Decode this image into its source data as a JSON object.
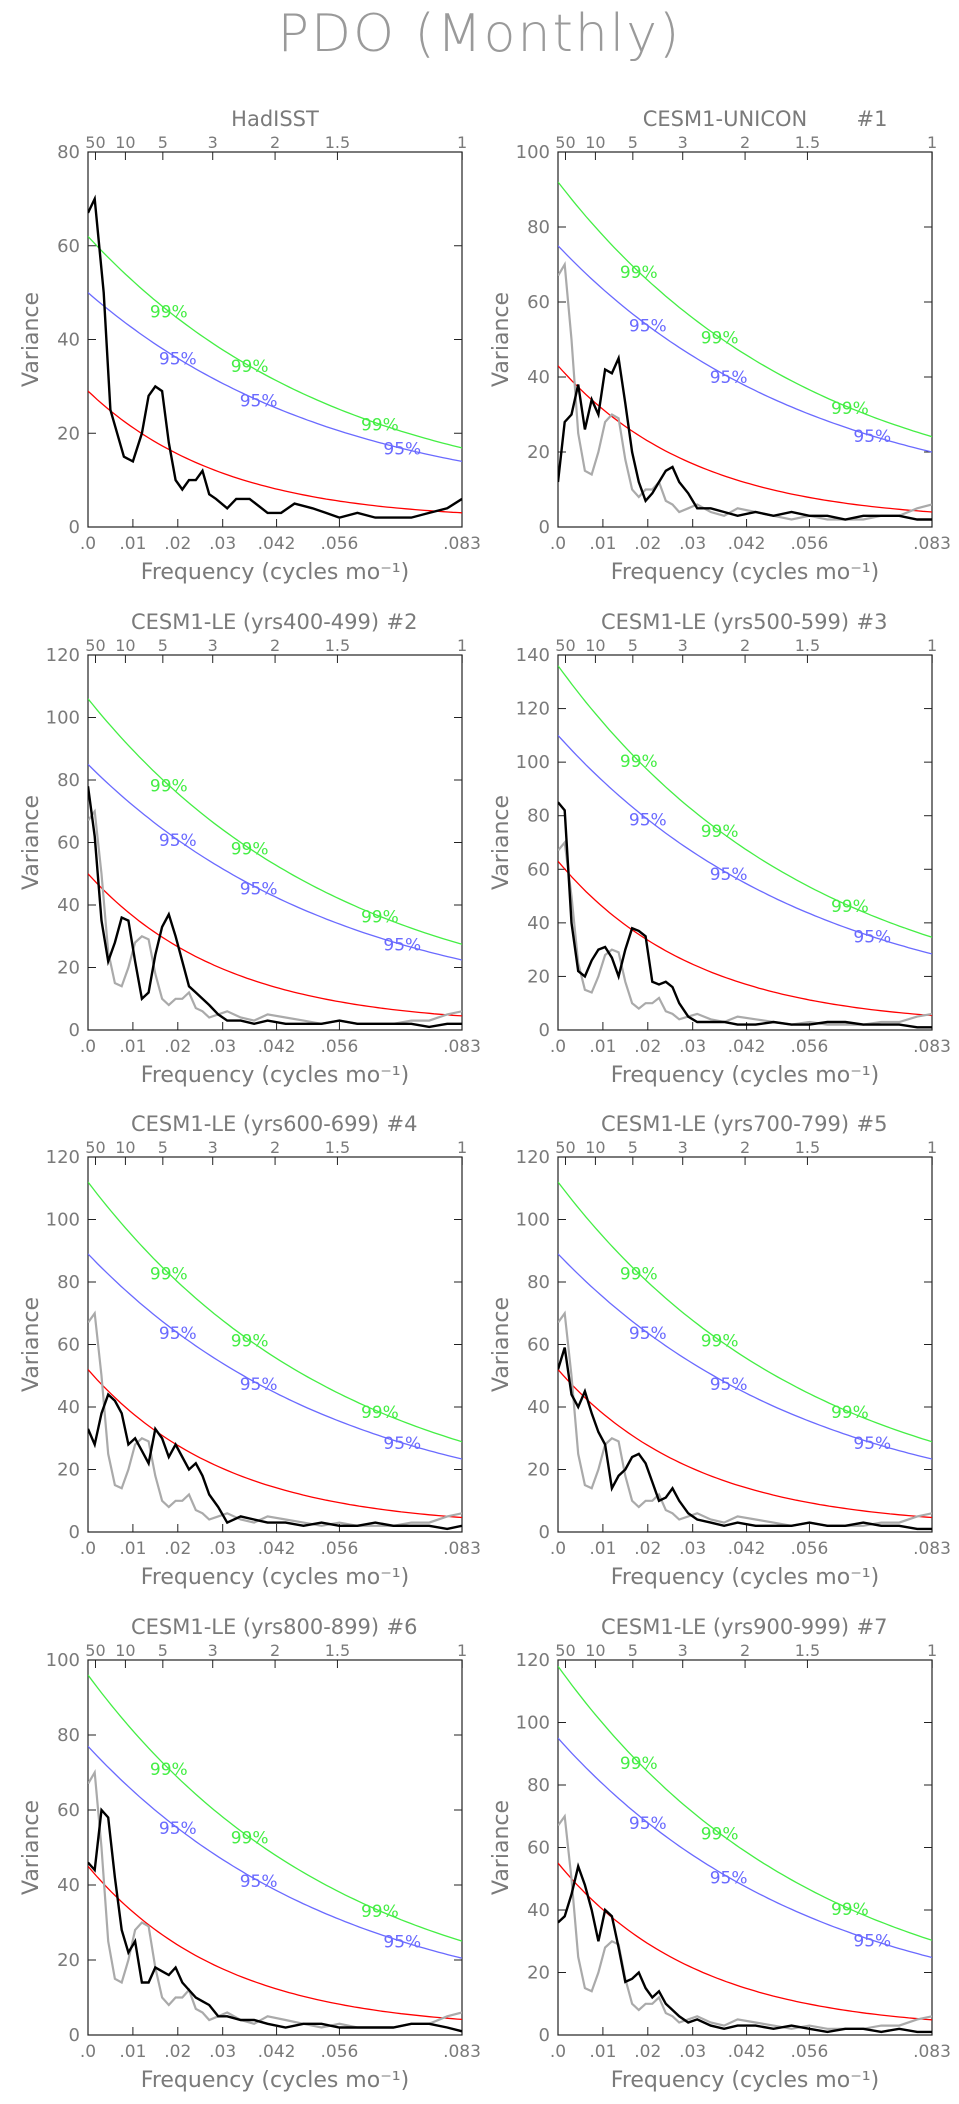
{
  "page": {
    "title": "PDO (Monthly)"
  },
  "colors": {
    "observed_or_model": "#000000",
    "reference_hadisst": "#aaaaaa",
    "red_noise": "#ff0000",
    "sig95": "#6a6aff",
    "sig99": "#44ee44",
    "axes": "#7a7a7a"
  },
  "chart_data": [
    {
      "type": "line",
      "title": "HadISST",
      "tag": "",
      "xlabel": "Frequency (cycles mo⁻¹)",
      "ylabel": "Variance",
      "xlim": [
        0,
        0.0833
      ],
      "ylim": [
        0,
        80
      ],
      "yticks": [
        0,
        20,
        40,
        60,
        80
      ],
      "xticks": [
        ".0",
        ".01",
        ".02",
        ".03",
        ".042",
        ".056",
        ".083"
      ],
      "top_axis_label": "",
      "top_ticks": [
        "50",
        "10",
        "5",
        "3",
        "2",
        "1.5",
        "1"
      ],
      "red_noise_start": 29,
      "sig95_start": 50,
      "sig99_start": 62,
      "show_reference": false,
      "sig_labels": [
        "99%",
        "95%",
        "99%",
        "95%",
        "99%",
        "95%"
      ],
      "series": [
        {
          "x": [
            0.0,
            0.0015,
            0.0035,
            0.005,
            0.008,
            0.01,
            0.012,
            0.0135,
            0.015,
            0.0165,
            0.018,
            0.0195,
            0.021,
            0.0225,
            0.024,
            0.0255,
            0.027,
            0.0285,
            0.031,
            0.033,
            0.036,
            0.04,
            0.043,
            0.046,
            0.05,
            0.053,
            0.056,
            0.06,
            0.064,
            0.068,
            0.072,
            0.076,
            0.08,
            0.0833
          ],
          "y": [
            67,
            70,
            50,
            25,
            15,
            14,
            20,
            28,
            30,
            29,
            18,
            10,
            8,
            10,
            10,
            12,
            7,
            6,
            4,
            6,
            6,
            3,
            3,
            5,
            4,
            3,
            2,
            3,
            2,
            2,
            2,
            3,
            4,
            6
          ]
        }
      ]
    },
    {
      "type": "line",
      "title": "CESM1-UNICON",
      "tag": "#1",
      "xlabel": "Frequency (cycles mo⁻¹)",
      "ylabel": "Variance",
      "xlim": [
        0,
        0.0833
      ],
      "ylim": [
        0,
        100
      ],
      "yticks": [
        0,
        20,
        40,
        60,
        80,
        100
      ],
      "xticks": [
        ".0",
        ".01",
        ".02",
        ".03",
        ".042",
        ".056",
        ".083"
      ],
      "top_axis_label": "",
      "top_ticks": [
        "50",
        "10",
        "5",
        "3",
        "2",
        "1.5",
        "1"
      ],
      "red_noise_start": 43,
      "sig95_start": 75,
      "sig99_start": 92,
      "show_reference": true,
      "sig_labels": [
        "99%",
        "95%",
        "99%",
        "95%",
        "99%",
        "95%"
      ],
      "series": [
        {
          "x": [
            0.0,
            0.0015,
            0.003,
            0.0045,
            0.006,
            0.0075,
            0.009,
            0.0105,
            0.012,
            0.0135,
            0.015,
            0.0165,
            0.018,
            0.0195,
            0.021,
            0.0225,
            0.024,
            0.0255,
            0.027,
            0.029,
            0.031,
            0.034,
            0.037,
            0.04,
            0.044,
            0.048,
            0.052,
            0.056,
            0.06,
            0.064,
            0.068,
            0.072,
            0.076,
            0.08,
            0.0833
          ],
          "y": [
            12,
            28,
            30,
            38,
            26,
            34,
            30,
            42,
            41,
            45,
            33,
            20,
            12,
            7,
            9,
            12,
            15,
            16,
            12,
            9,
            5,
            5,
            4,
            3,
            4,
            3,
            4,
            3,
            3,
            2,
            3,
            3,
            3,
            2,
            2
          ]
        }
      ]
    },
    {
      "type": "line",
      "title": "CESM1-LE (yrs400-499)",
      "tag": "#2",
      "xlabel": "Frequency (cycles mo⁻¹)",
      "ylabel": "Variance",
      "xlim": [
        0,
        0.0833
      ],
      "ylim": [
        0,
        120
      ],
      "yticks": [
        0,
        20,
        40,
        60,
        80,
        100,
        120
      ],
      "xticks": [
        ".0",
        ".01",
        ".02",
        ".03",
        ".042",
        ".056",
        ".083"
      ],
      "top_axis_label": "",
      "top_ticks": [
        "50",
        "10",
        "5",
        "3",
        "2",
        "1.5",
        "1"
      ],
      "red_noise_start": 50,
      "sig95_start": 85,
      "sig99_start": 106,
      "show_reference": true,
      "sig_labels": [
        "99%",
        "95%",
        "99%",
        "95%",
        "99%",
        "95%"
      ],
      "series": [
        {
          "x": [
            0.0,
            0.0015,
            0.003,
            0.0045,
            0.006,
            0.0075,
            0.009,
            0.0105,
            0.012,
            0.0135,
            0.015,
            0.0165,
            0.018,
            0.0195,
            0.021,
            0.0225,
            0.024,
            0.0255,
            0.027,
            0.029,
            0.031,
            0.034,
            0.037,
            0.04,
            0.044,
            0.048,
            0.052,
            0.056,
            0.06,
            0.064,
            0.068,
            0.072,
            0.076,
            0.08,
            0.0833
          ],
          "y": [
            78,
            62,
            35,
            22,
            28,
            36,
            35,
            22,
            10,
            12,
            24,
            33,
            37,
            30,
            22,
            14,
            12,
            10,
            8,
            5,
            3,
            3,
            2,
            3,
            2,
            2,
            2,
            3,
            2,
            2,
            2,
            2,
            1,
            2,
            2
          ]
        }
      ]
    },
    {
      "type": "line",
      "title": "CESM1-LE (yrs500-599)",
      "tag": "#3",
      "xlabel": "Frequency (cycles mo⁻¹)",
      "ylabel": "Variance",
      "xlim": [
        0,
        0.0833
      ],
      "ylim": [
        0,
        140
      ],
      "yticks": [
        0,
        20,
        40,
        60,
        80,
        100,
        120,
        140
      ],
      "xticks": [
        ".0",
        ".01",
        ".02",
        ".03",
        ".042",
        ".056",
        ".083"
      ],
      "top_axis_label": "",
      "top_ticks": [
        "50",
        "10",
        "5",
        "3",
        "2",
        "1.5",
        "1"
      ],
      "red_noise_start": 63,
      "sig95_start": 110,
      "sig99_start": 136,
      "show_reference": true,
      "sig_labels": [
        "99%",
        "95%",
        "99%",
        "95%",
        "99%",
        "95%"
      ],
      "series": [
        {
          "x": [
            0.0,
            0.0015,
            0.003,
            0.0045,
            0.006,
            0.0075,
            0.009,
            0.0105,
            0.012,
            0.0135,
            0.015,
            0.0165,
            0.018,
            0.0195,
            0.021,
            0.0225,
            0.024,
            0.0255,
            0.027,
            0.029,
            0.031,
            0.034,
            0.037,
            0.04,
            0.044,
            0.048,
            0.052,
            0.056,
            0.06,
            0.064,
            0.068,
            0.072,
            0.076,
            0.08,
            0.0833
          ],
          "y": [
            85,
            82,
            40,
            22,
            20,
            26,
            30,
            31,
            27,
            20,
            30,
            38,
            37,
            35,
            18,
            17,
            18,
            16,
            10,
            5,
            3,
            3,
            3,
            2,
            2,
            3,
            2,
            2,
            3,
            3,
            2,
            2,
            2,
            1,
            1
          ]
        }
      ]
    },
    {
      "type": "line",
      "title": "CESM1-LE (yrs600-699)",
      "tag": "#4",
      "xlabel": "Frequency (cycles mo⁻¹)",
      "ylabel": "Variance",
      "xlim": [
        0,
        0.0833
      ],
      "ylim": [
        0,
        120
      ],
      "yticks": [
        0,
        20,
        40,
        60,
        80,
        100,
        120
      ],
      "xticks": [
        ".0",
        ".01",
        ".02",
        ".03",
        ".042",
        ".056",
        ".083"
      ],
      "top_axis_label": "",
      "top_ticks": [
        "50",
        "10",
        "5",
        "3",
        "2",
        "1.5",
        "1"
      ],
      "red_noise_start": 52,
      "sig95_start": 89,
      "sig99_start": 112,
      "show_reference": true,
      "sig_labels": [
        "99%",
        "95%",
        "99%",
        "95%",
        "99%",
        "95%"
      ],
      "series": [
        {
          "x": [
            0.0,
            0.0015,
            0.003,
            0.0045,
            0.006,
            0.0075,
            0.009,
            0.0105,
            0.012,
            0.0135,
            0.015,
            0.0165,
            0.018,
            0.0195,
            0.021,
            0.0225,
            0.024,
            0.0255,
            0.027,
            0.029,
            0.031,
            0.034,
            0.037,
            0.04,
            0.044,
            0.048,
            0.052,
            0.056,
            0.06,
            0.064,
            0.068,
            0.072,
            0.076,
            0.08,
            0.0833
          ],
          "y": [
            33,
            28,
            38,
            44,
            42,
            38,
            28,
            30,
            26,
            22,
            33,
            30,
            24,
            28,
            24,
            20,
            22,
            18,
            12,
            8,
            3,
            5,
            4,
            3,
            3,
            2,
            3,
            2,
            2,
            3,
            2,
            2,
            2,
            1,
            2
          ]
        }
      ]
    },
    {
      "type": "line",
      "title": "CESM1-LE (yrs700-799)",
      "tag": "#5",
      "xlabel": "Frequency (cycles mo⁻¹)",
      "ylabel": "Variance",
      "xlim": [
        0,
        0.0833
      ],
      "ylim": [
        0,
        120
      ],
      "yticks": [
        0,
        20,
        40,
        60,
        80,
        100,
        120
      ],
      "xticks": [
        ".0",
        ".01",
        ".02",
        ".03",
        ".042",
        ".056",
        ".083"
      ],
      "top_axis_label": "",
      "top_ticks": [
        "50",
        "10",
        "5",
        "3",
        "2",
        "1.5",
        "1"
      ],
      "red_noise_start": 52,
      "sig95_start": 89,
      "sig99_start": 112,
      "show_reference": true,
      "sig_labels": [
        "99%",
        "95%",
        "99%",
        "95%",
        "99%",
        "95%"
      ],
      "series": [
        {
          "x": [
            0.0,
            0.0015,
            0.003,
            0.0045,
            0.006,
            0.0075,
            0.009,
            0.0105,
            0.012,
            0.0135,
            0.015,
            0.0165,
            0.018,
            0.0195,
            0.021,
            0.0225,
            0.024,
            0.0255,
            0.027,
            0.029,
            0.031,
            0.034,
            0.037,
            0.04,
            0.044,
            0.048,
            0.052,
            0.056,
            0.06,
            0.064,
            0.068,
            0.072,
            0.076,
            0.08,
            0.0833
          ],
          "y": [
            52,
            59,
            44,
            40,
            45,
            38,
            32,
            28,
            14,
            18,
            20,
            24,
            25,
            22,
            16,
            10,
            11,
            14,
            10,
            6,
            4,
            3,
            2,
            3,
            2,
            2,
            2,
            3,
            2,
            2,
            3,
            2,
            2,
            1,
            1
          ]
        }
      ]
    },
    {
      "type": "line",
      "title": "CESM1-LE (yrs800-899)",
      "tag": "#6",
      "xlabel": "Frequency (cycles mo⁻¹)",
      "ylabel": "Variance",
      "xlim": [
        0,
        0.0833
      ],
      "ylim": [
        0,
        100
      ],
      "yticks": [
        0,
        20,
        40,
        60,
        80,
        100
      ],
      "xticks": [
        ".0",
        ".01",
        ".02",
        ".03",
        ".042",
        ".056",
        ".083"
      ],
      "top_axis_label": "",
      "top_ticks": [
        "50",
        "10",
        "5",
        "3",
        "2",
        "1.5",
        "1"
      ],
      "red_noise_start": 45,
      "sig95_start": 77,
      "sig99_start": 96,
      "show_reference": true,
      "sig_labels": [
        "99%",
        "95%",
        "99%",
        "95%",
        "99%",
        "95%"
      ],
      "series": [
        {
          "x": [
            0.0,
            0.0015,
            0.003,
            0.0045,
            0.006,
            0.0075,
            0.009,
            0.0105,
            0.012,
            0.0135,
            0.015,
            0.0165,
            0.018,
            0.0195,
            0.021,
            0.0225,
            0.024,
            0.0255,
            0.027,
            0.029,
            0.031,
            0.034,
            0.037,
            0.04,
            0.044,
            0.048,
            0.052,
            0.056,
            0.06,
            0.064,
            0.068,
            0.072,
            0.076,
            0.08,
            0.0833
          ],
          "y": [
            46,
            44,
            60,
            58,
            42,
            28,
            22,
            25,
            14,
            14,
            18,
            17,
            16,
            18,
            14,
            12,
            10,
            9,
            8,
            5,
            5,
            4,
            4,
            3,
            2,
            3,
            3,
            2,
            2,
            2,
            2,
            3,
            3,
            2,
            1
          ]
        }
      ]
    },
    {
      "type": "line",
      "title": "CESM1-LE (yrs900-999)",
      "tag": "#7",
      "xlabel": "Frequency (cycles mo⁻¹)",
      "ylabel": "Variance",
      "xlim": [
        0,
        0.0833
      ],
      "ylim": [
        0,
        120
      ],
      "yticks": [
        0,
        20,
        40,
        60,
        80,
        100,
        120
      ],
      "xticks": [
        ".0",
        ".01",
        ".02",
        ".03",
        ".042",
        ".056",
        ".083"
      ],
      "top_axis_label": "",
      "top_ticks": [
        "50",
        "10",
        "5",
        "3",
        "2",
        "1.5",
        "1"
      ],
      "red_noise_start": 55,
      "sig95_start": 95,
      "sig99_start": 118,
      "show_reference": true,
      "sig_labels": [
        "99%",
        "95%",
        "99%",
        "95%",
        "99%",
        "95%"
      ],
      "series": [
        {
          "x": [
            0.0,
            0.0015,
            0.003,
            0.0045,
            0.006,
            0.0075,
            0.009,
            0.0105,
            0.012,
            0.0135,
            0.015,
            0.0165,
            0.018,
            0.0195,
            0.021,
            0.0225,
            0.024,
            0.0255,
            0.027,
            0.029,
            0.031,
            0.034,
            0.037,
            0.04,
            0.044,
            0.048,
            0.052,
            0.056,
            0.06,
            0.064,
            0.068,
            0.072,
            0.076,
            0.08,
            0.0833
          ],
          "y": [
            36,
            38,
            45,
            54,
            48,
            40,
            30,
            40,
            38,
            28,
            17,
            18,
            20,
            15,
            12,
            14,
            10,
            8,
            6,
            4,
            5,
            3,
            2,
            3,
            3,
            2,
            3,
            2,
            1,
            2,
            2,
            1,
            2,
            1,
            1
          ]
        }
      ]
    }
  ],
  "reference_series": {
    "x": [
      0.0,
      0.0015,
      0.003,
      0.0045,
      0.006,
      0.0075,
      0.009,
      0.0105,
      0.012,
      0.0135,
      0.015,
      0.0165,
      0.018,
      0.0195,
      0.021,
      0.0225,
      0.024,
      0.0255,
      0.027,
      0.029,
      0.031,
      0.034,
      0.037,
      0.04,
      0.044,
      0.048,
      0.052,
      0.056,
      0.06,
      0.064,
      0.068,
      0.072,
      0.076,
      0.08,
      0.0833
    ],
    "y": [
      67,
      70,
      50,
      25,
      15,
      14,
      20,
      28,
      30,
      29,
      18,
      10,
      8,
      10,
      10,
      12,
      7,
      6,
      4,
      5,
      6,
      4,
      3,
      5,
      4,
      3,
      2,
      3,
      2,
      2,
      2,
      3,
      3,
      5,
      6
    ]
  }
}
